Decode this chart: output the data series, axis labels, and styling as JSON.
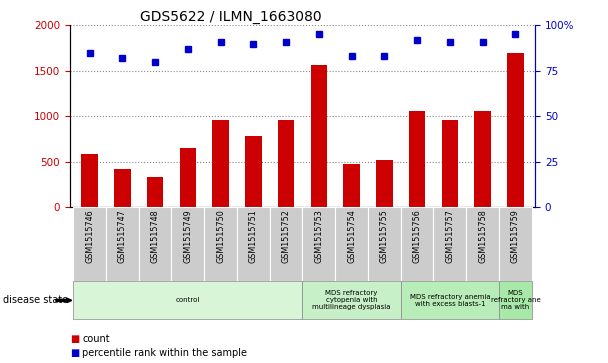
{
  "title": "GDS5622 / ILMN_1663080",
  "samples": [
    "GSM1515746",
    "GSM1515747",
    "GSM1515748",
    "GSM1515749",
    "GSM1515750",
    "GSM1515751",
    "GSM1515752",
    "GSM1515753",
    "GSM1515754",
    "GSM1515755",
    "GSM1515756",
    "GSM1515757",
    "GSM1515758",
    "GSM1515759"
  ],
  "counts": [
    580,
    420,
    330,
    650,
    960,
    780,
    960,
    1560,
    470,
    520,
    1060,
    960,
    1060,
    1700
  ],
  "percentiles": [
    85,
    82,
    80,
    87,
    91,
    90,
    91,
    95,
    83,
    83,
    92,
    91,
    91,
    95
  ],
  "bar_color": "#cc0000",
  "dot_color": "#0000cc",
  "ylim_left": [
    0,
    2000
  ],
  "ylim_right": [
    0,
    100
  ],
  "yticks_left": [
    0,
    500,
    1000,
    1500,
    2000
  ],
  "yticks_right": [
    0,
    25,
    50,
    75,
    100
  ],
  "disease_groups": [
    {
      "label": "control",
      "start": 0,
      "end": 7,
      "color": "#d8f5d8"
    },
    {
      "label": "MDS refractory\ncytopenia with\nmultilineage dysplasia",
      "start": 7,
      "end": 10,
      "color": "#c8f0c8"
    },
    {
      "label": "MDS refractory anemia\nwith excess blasts-1",
      "start": 10,
      "end": 13,
      "color": "#b8ecb8"
    },
    {
      "label": "MDS\nrefractory ane\nma with",
      "start": 13,
      "end": 14,
      "color": "#a8e8a8"
    }
  ],
  "disease_state_label": "disease state",
  "legend_count_label": "count",
  "legend_percentile_label": "percentile rank within the sample",
  "tick_bg_color": "#cccccc",
  "title_fontsize": 10,
  "axis_label_color_left": "#cc0000",
  "axis_label_color_right": "#0000cc"
}
